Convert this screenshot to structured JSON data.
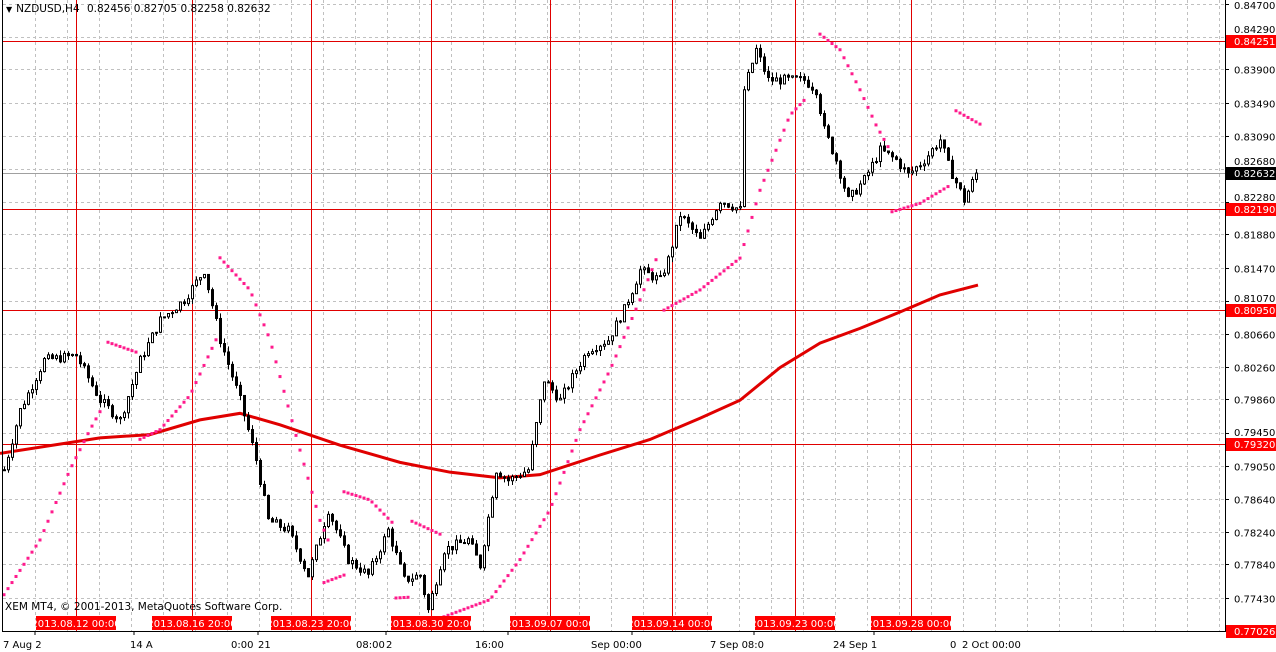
{
  "header": {
    "symbol": "NZDUSD,H4",
    "ohlc": "0.82456 0.82705 0.82258 0.82632"
  },
  "footer": {
    "copyright": "XEM MT4, © 2001-2013, MetaQuotes Software Corp."
  },
  "colors": {
    "background": "#ffffff",
    "grid": "#c0c0c0",
    "object_line": "#e00000",
    "label_bg": "#ff0000",
    "sar": "#ff1a8c",
    "ma": "#e00000",
    "bid_tag": "#000000"
  },
  "chart_data": {
    "type": "candlestick",
    "timeframe": "H4",
    "ylim": [
      0.77026,
      0.847
    ],
    "grid": true,
    "y_ticks": [
      "0.84700",
      "0.84290",
      "0.83900",
      "0.83490",
      "0.83090",
      "0.82680",
      "0.82280",
      "0.81880",
      "0.81470",
      "0.81070",
      "0.80660",
      "0.80260",
      "0.79860",
      "0.79450",
      "0.79050",
      "0.78640",
      "0.78240",
      "0.77840",
      "0.77430"
    ],
    "price_tags": [
      {
        "label": "0.84251",
        "kind": "line"
      },
      {
        "label": "0.82190",
        "kind": "line"
      },
      {
        "label": "0.80950",
        "kind": "line"
      },
      {
        "label": "0.79320",
        "kind": "line"
      },
      {
        "label": "0.77026",
        "kind": "line"
      },
      {
        "label": "0.82632",
        "kind": "bid"
      }
    ],
    "x_labels": [
      "7 Aug 2",
      "14 A",
      "0:00",
      "21",
      "08:00",
      "2",
      "16:00",
      "Sep 00:00",
      "7 Sep 08:0",
      "24 Sep 1",
      "0",
      "2 Oct 00:00"
    ],
    "vline_labels": [
      "2013.08.12 00:00",
      "2013.08.16 20:00",
      "2013.08.23 20:00",
      "2013.08.30 20:00",
      "2013.09.07 00:00",
      "2013.09.14 00:00",
      "2013.09.23 00:00",
      "2013.09.28 00:00"
    ],
    "close_path": [
      [
        0,
        0.79
      ],
      [
        4,
        0.7973
      ],
      [
        10,
        0.8034
      ],
      [
        18,
        0.804
      ],
      [
        24,
        0.7985
      ],
      [
        29,
        0.7961
      ],
      [
        34,
        0.8034
      ],
      [
        39,
        0.8083
      ],
      [
        45,
        0.8108
      ],
      [
        50,
        0.8144
      ],
      [
        54,
        0.8059
      ],
      [
        59,
        0.7985
      ],
      [
        63,
        0.7912
      ],
      [
        66,
        0.7838
      ],
      [
        71,
        0.7826
      ],
      [
        76,
        0.7771
      ],
      [
        81,
        0.7851
      ],
      [
        86,
        0.779
      ],
      [
        91,
        0.7771
      ],
      [
        96,
        0.7826
      ],
      [
        100,
        0.7765
      ],
      [
        104,
        0.7771
      ],
      [
        106,
        0.7728
      ],
      [
        110,
        0.7802
      ],
      [
        116,
        0.7814
      ],
      [
        119,
        0.7783
      ],
      [
        123,
        0.79
      ],
      [
        126,
        0.7887
      ],
      [
        131,
        0.79
      ],
      [
        135,
        0.801
      ],
      [
        139,
        0.7985
      ],
      [
        143,
        0.8022
      ],
      [
        146,
        0.8047
      ],
      [
        151,
        0.8059
      ],
      [
        155,
        0.8096
      ],
      [
        159,
        0.8144
      ],
      [
        164,
        0.8132
      ],
      [
        166,
        0.8157
      ],
      [
        169,
        0.8212
      ],
      [
        174,
        0.8181
      ],
      [
        179,
        0.823
      ],
      [
        184,
        0.8218
      ],
      [
        185,
        0.8365
      ],
      [
        188,
        0.8414
      ],
      [
        191,
        0.8377
      ],
      [
        196,
        0.8377
      ],
      [
        200,
        0.8377
      ],
      [
        203,
        0.8365
      ],
      [
        205,
        0.8316
      ],
      [
        208,
        0.8279
      ],
      [
        211,
        0.823
      ],
      [
        215,
        0.8255
      ],
      [
        219,
        0.8291
      ],
      [
        223,
        0.8279
      ],
      [
        226,
        0.8261
      ],
      [
        230,
        0.8279
      ],
      [
        234,
        0.8304
      ],
      [
        236,
        0.8273
      ],
      [
        240,
        0.823
      ],
      [
        243,
        0.8263
      ]
    ],
    "moving_average": [
      [
        -1,
        0.792
      ],
      [
        24,
        0.7939
      ],
      [
        36.5,
        0.7943
      ],
      [
        49,
        0.7961
      ],
      [
        59,
        0.7969
      ],
      [
        69,
        0.7955
      ],
      [
        84,
        0.793
      ],
      [
        99,
        0.7909
      ],
      [
        111.5,
        0.7897
      ],
      [
        124,
        0.789
      ],
      [
        134,
        0.7894
      ],
      [
        149,
        0.7918
      ],
      [
        161.5,
        0.7937
      ],
      [
        174,
        0.7963
      ],
      [
        184,
        0.7985
      ],
      [
        194,
        0.8025
      ],
      [
        204,
        0.8055
      ],
      [
        214,
        0.8073
      ],
      [
        224,
        0.8093
      ],
      [
        234,
        0.8114
      ],
      [
        243.5,
        0.8126
      ]
    ],
    "parabolic_sar": [
      [
        [
          0,
          0.7747
        ],
        [
          9,
          0.7814
        ],
        [
          16.5,
          0.79
        ],
        [
          21.5,
          0.7949
        ],
        [
          24,
          0.7971
        ]
      ],
      [
        [
          26,
          0.8056
        ],
        [
          33,
          0.8044
        ]
      ],
      [
        [
          33.5,
          0.7936
        ],
        [
          39,
          0.7949
        ],
        [
          46.5,
          0.7991
        ],
        [
          53,
          0.8059
        ]
      ],
      [
        [
          53.5,
          0.8162
        ],
        [
          61.5,
          0.812
        ],
        [
          66.5,
          0.8059
        ],
        [
          74,
          0.7924
        ],
        [
          79,
          0.7838
        ],
        [
          81.5,
          0.7808
        ]
      ],
      [
        [
          79.5,
          0.7761
        ],
        [
          85,
          0.7771
        ]
      ],
      [
        [
          85,
          0.7873
        ],
        [
          91.5,
          0.7863
        ],
        [
          97.75,
          0.7832
        ]
      ],
      [
        [
          98,
          0.7743
        ],
        [
          101.5,
          0.7744
        ]
      ],
      [
        [
          101.5,
          0.7838
        ],
        [
          109.5,
          0.782
        ]
      ],
      [
        [
          110,
          0.772
        ],
        [
          121.5,
          0.7741
        ],
        [
          129,
          0.779
        ],
        [
          136.5,
          0.7851
        ],
        [
          144,
          0.7949
        ],
        [
          151.5,
          0.8022
        ],
        [
          159,
          0.8108
        ],
        [
          163,
          0.8157
        ]
      ],
      [
        [
          164.5,
          0.8094
        ],
        [
          174,
          0.812
        ],
        [
          184,
          0.8159
        ],
        [
          189,
          0.8242
        ],
        [
          193,
          0.8291
        ],
        [
          196.5,
          0.8334
        ],
        [
          200,
          0.8352
        ]
      ],
      [
        [
          203.5,
          0.8435
        ],
        [
          209,
          0.8414
        ],
        [
          214,
          0.8365
        ],
        [
          218,
          0.8322
        ],
        [
          221.5,
          0.8291
        ]
      ],
      [
        [
          221.5,
          0.8215
        ],
        [
          229,
          0.8226
        ],
        [
          236.5,
          0.8248
        ]
      ],
      [
        [
          237.75,
          0.834
        ],
        [
          244,
          0.8323
        ]
      ]
    ]
  }
}
